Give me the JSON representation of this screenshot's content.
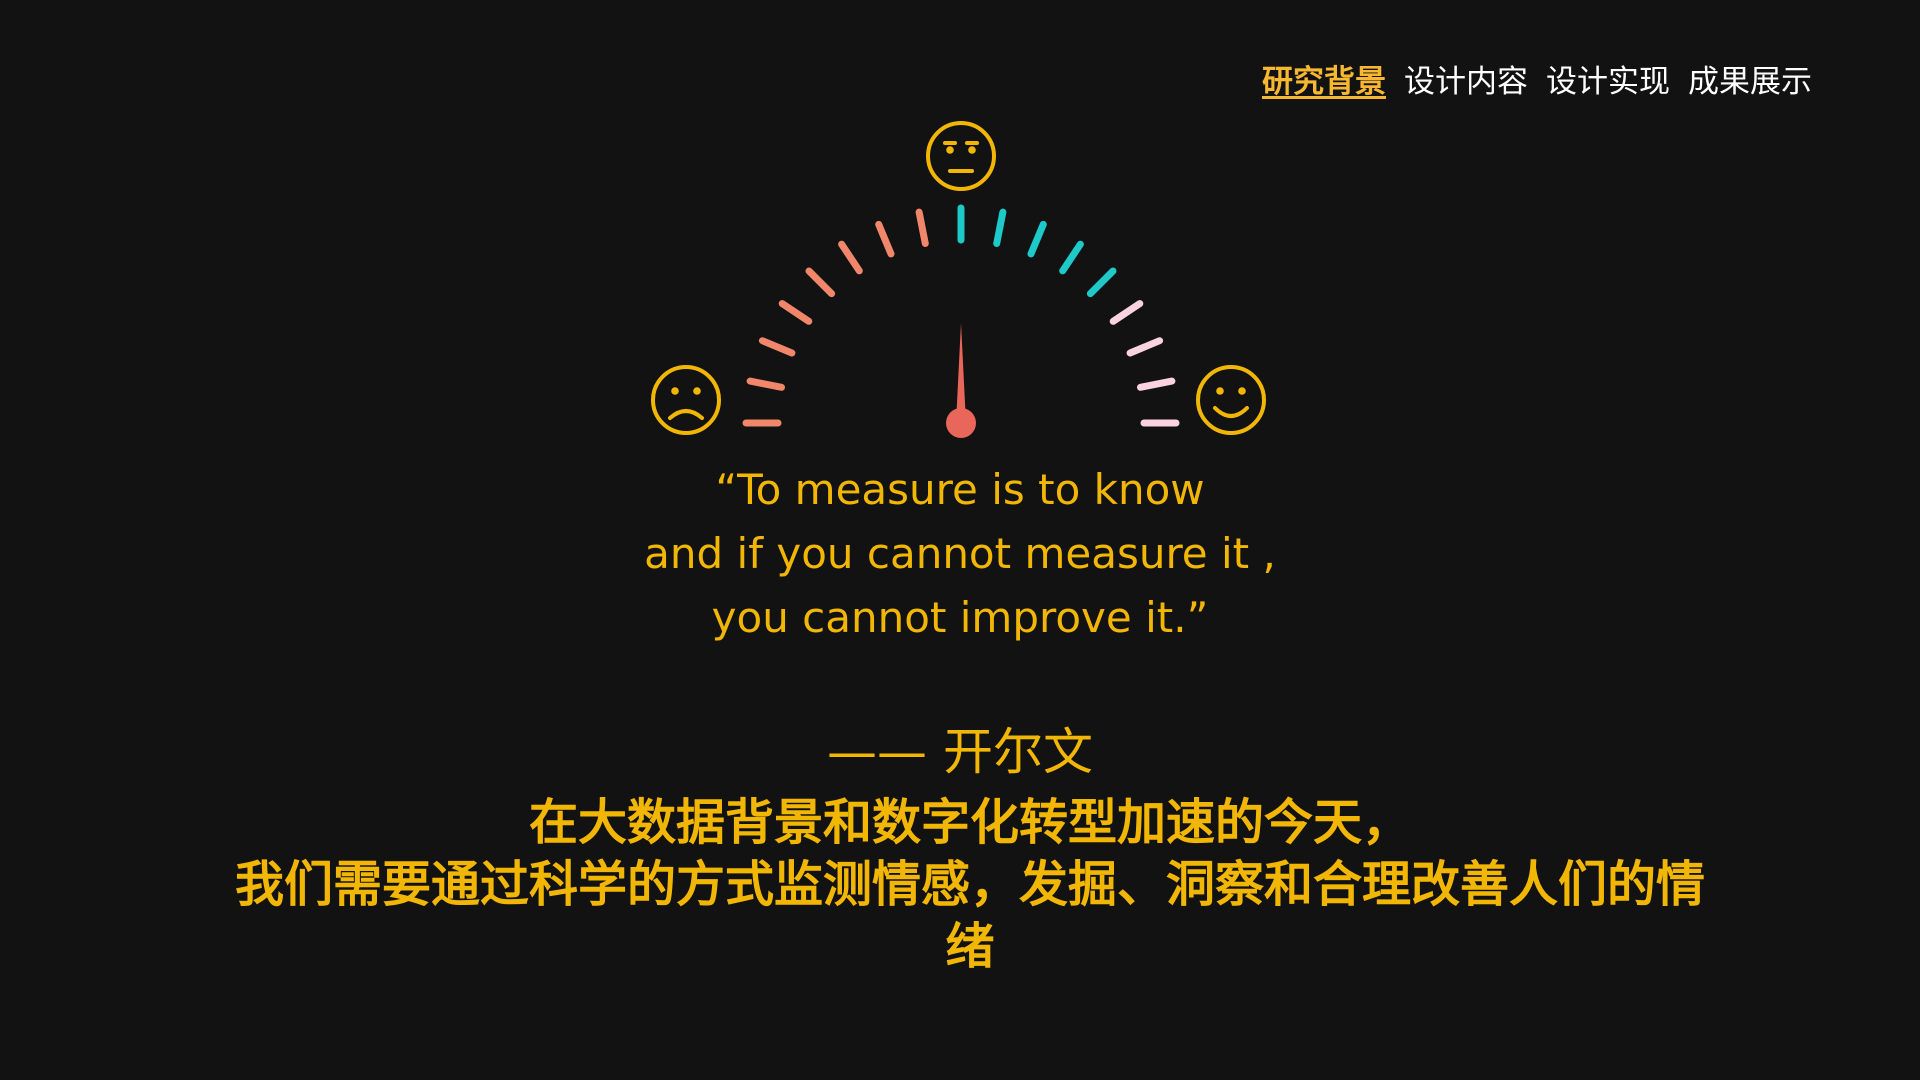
{
  "nav": {
    "items": [
      {
        "label": "研究背景",
        "active": true
      },
      {
        "label": "设计内容",
        "active": false
      },
      {
        "label": "设计实现",
        "active": false
      },
      {
        "label": "成果展示",
        "active": false
      }
    ]
  },
  "gauge": {
    "faces": [
      "sad-face-icon",
      "neutral-face-icon",
      "happy-face-icon"
    ],
    "needle_value": 0.5,
    "colors": {
      "face": "#f2b705",
      "needle": "#e8675a",
      "tick_left": "#f0876a",
      "tick_mid": "#1ec9c9",
      "tick_right": "#fbd3e0"
    }
  },
  "quote": {
    "line1": "“To measure is to know",
    "line2": "and if you cannot measure it ,",
    "line3": "you cannot improve it.”"
  },
  "author": "—— 开尔文",
  "body": {
    "line1": "在大数据背景和数字化转型加速的今天，",
    "line2": "我们需要通过科学的方式监测情感，发掘、洞察和合理改善人们的情",
    "line3": "绪"
  }
}
